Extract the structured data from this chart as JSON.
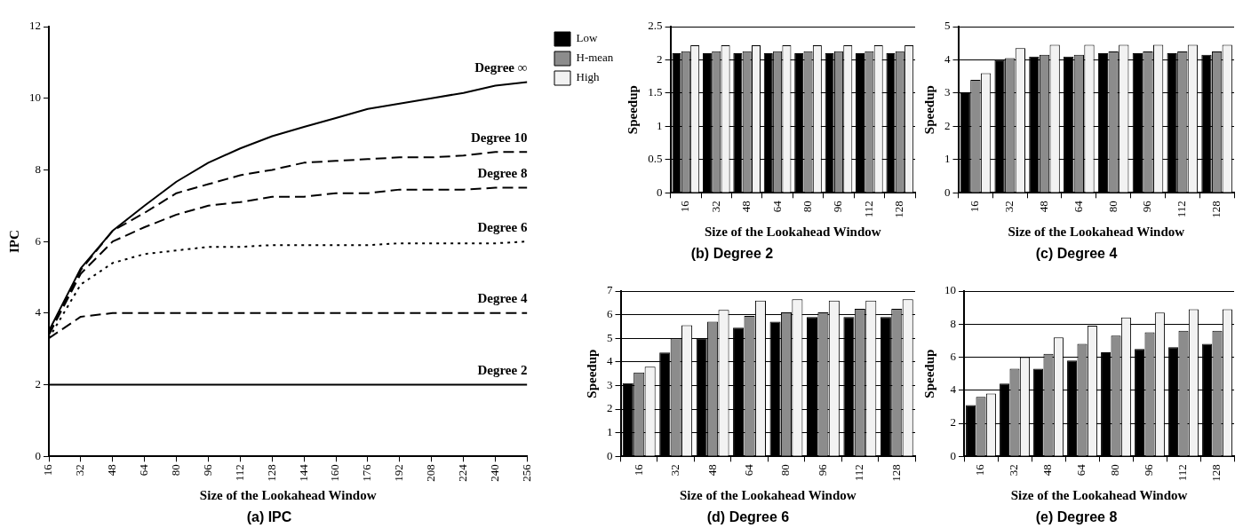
{
  "chart_data": [
    {
      "type": "line",
      "title": "(a) IPC",
      "xlabel": "Size of the Lookahead Window",
      "ylabel": "IPC",
      "x": [
        16,
        32,
        48,
        64,
        80,
        96,
        112,
        128,
        144,
        160,
        176,
        192,
        208,
        224,
        240,
        256
      ],
      "xlim": [
        16,
        256
      ],
      "xticks": [
        16,
        32,
        48,
        64,
        80,
        96,
        112,
        128,
        144,
        160,
        176,
        192,
        208,
        224,
        240,
        256
      ],
      "ylim": [
        0,
        12
      ],
      "yticks": [
        0,
        2,
        4,
        6,
        8,
        10,
        12
      ],
      "grid": false,
      "legend": false,
      "series": [
        {
          "name": "Degree ∞",
          "color": "#000000",
          "line_style": "solid",
          "values": [
            3.5,
            5.25,
            6.3,
            7.0,
            7.67,
            8.2,
            8.6,
            8.94,
            9.2,
            9.45,
            9.7,
            9.85,
            10.0,
            10.15,
            10.35,
            10.45
          ]
        },
        {
          "name": "Degree 10",
          "color": "#000000",
          "line_style": "dashed",
          "values": [
            3.4,
            5.2,
            6.3,
            6.8,
            7.35,
            7.6,
            7.85,
            8.0,
            8.2,
            8.25,
            8.3,
            8.35,
            8.35,
            8.4,
            8.5,
            8.5
          ]
        },
        {
          "name": "Degree 8",
          "color": "#000000",
          "line_style": "dashed",
          "values": [
            3.4,
            5.1,
            6.0,
            6.4,
            6.75,
            7.0,
            7.1,
            7.25,
            7.25,
            7.35,
            7.35,
            7.45,
            7.45,
            7.45,
            7.5,
            7.5
          ]
        },
        {
          "name": "Degree 6",
          "color": "#000000",
          "line_style": "dotted",
          "values": [
            3.3,
            4.8,
            5.4,
            5.65,
            5.75,
            5.85,
            5.85,
            5.9,
            5.9,
            5.9,
            5.9,
            5.95,
            5.95,
            5.95,
            5.95,
            6.0
          ]
        },
        {
          "name": "Degree 4",
          "color": "#000000",
          "line_style": "dashed",
          "values": [
            3.3,
            3.9,
            4.0,
            4.0,
            4.0,
            4.0,
            4.0,
            4.0,
            4.0,
            4.0,
            4.0,
            4.0,
            4.0,
            4.0,
            4.0,
            4.0
          ]
        },
        {
          "name": "Degree 2",
          "color": "#000000",
          "line_style": "solid",
          "values": [
            2,
            2,
            2,
            2,
            2,
            2,
            2,
            2,
            2,
            2,
            2,
            2,
            2,
            2,
            2,
            2
          ]
        }
      ]
    },
    {
      "type": "bar",
      "title": "(b) Degree 2",
      "xlabel": "Size of the Lookahead Window",
      "ylabel": "Speedup",
      "categories": [
        "16",
        "32",
        "48",
        "64",
        "80",
        "96",
        "112",
        "128"
      ],
      "ylim": [
        0,
        2.5
      ],
      "yticks": [
        0,
        0.5,
        1,
        1.5,
        2,
        2.5
      ],
      "grid": "y",
      "legend": "top left",
      "series": [
        {
          "name": "Low",
          "color": "#000000",
          "values": [
            2.1,
            2.1,
            2.1,
            2.1,
            2.1,
            2.1,
            2.1,
            2.1
          ]
        },
        {
          "name": "H-mean",
          "color": "#8c8c8c",
          "values": [
            2.13,
            2.13,
            2.13,
            2.13,
            2.13,
            2.13,
            2.13,
            2.13
          ]
        },
        {
          "name": "High",
          "color": "#f2f2f2",
          "values": [
            2.22,
            2.22,
            2.22,
            2.22,
            2.22,
            2.22,
            2.22,
            2.22
          ]
        }
      ]
    },
    {
      "type": "bar",
      "title": "(c) Degree 4",
      "xlabel": "Size of the Lookahead Window",
      "ylabel": "Speedup",
      "categories": [
        "16",
        "32",
        "48",
        "64",
        "80",
        "96",
        "112",
        "128"
      ],
      "ylim": [
        0,
        5
      ],
      "yticks": [
        0,
        1,
        2,
        3,
        4,
        5
      ],
      "grid": "y",
      "legend": false,
      "series": [
        {
          "color": "#000000",
          "values": [
            3.0,
            4.0,
            4.1,
            4.1,
            4.2,
            4.2,
            4.2,
            4.15
          ]
        },
        {
          "color": "#8c8c8c",
          "values": [
            3.4,
            4.05,
            4.15,
            4.15,
            4.25,
            4.25,
            4.25,
            4.25
          ]
        },
        {
          "color": "#f2f2f2",
          "values": [
            3.6,
            4.35,
            4.45,
            4.45,
            4.45,
            4.45,
            4.45,
            4.45
          ]
        }
      ]
    },
    {
      "type": "bar",
      "title": "(d) Degree 6",
      "xlabel": "Size of the Lookahead Window",
      "ylabel": "Speedup",
      "categories": [
        "16",
        "32",
        "48",
        "64",
        "80",
        "96",
        "112",
        "128"
      ],
      "ylim": [
        0,
        7
      ],
      "yticks": [
        0,
        1,
        2,
        3,
        4,
        5,
        6,
        7
      ],
      "grid": "y",
      "legend": false,
      "series": [
        {
          "color": "#000000",
          "values": [
            3.1,
            4.4,
            5.0,
            5.45,
            5.7,
            5.9,
            5.9,
            5.9
          ]
        },
        {
          "color": "#8c8c8c",
          "values": [
            3.55,
            5.0,
            5.7,
            5.95,
            6.1,
            6.1,
            6.25,
            6.25
          ]
        },
        {
          "color": "#f2f2f2",
          "values": [
            3.8,
            5.55,
            6.2,
            6.6,
            6.65,
            6.6,
            6.6,
            6.65
          ]
        }
      ]
    },
    {
      "type": "bar",
      "title": "(e) Degree 8",
      "xlabel": "Size of the Lookahead Window",
      "ylabel": "Speedup",
      "categories": [
        "16",
        "32",
        "48",
        "64",
        "80",
        "96",
        "112",
        "128"
      ],
      "ylim": [
        0,
        10
      ],
      "yticks": [
        0,
        2,
        4,
        6,
        8,
        10
      ],
      "grid": "y",
      "legend": false,
      "series": [
        {
          "color": "#000000",
          "values": [
            3.1,
            4.4,
            5.3,
            5.8,
            6.3,
            6.5,
            6.6,
            6.8
          ]
        },
        {
          "color": "#8c8c8c",
          "values": [
            3.6,
            5.3,
            6.2,
            6.8,
            7.3,
            7.5,
            7.6,
            7.6
          ]
        },
        {
          "color": "#f2f2f2",
          "values": [
            3.8,
            6.0,
            7.2,
            7.9,
            8.4,
            8.7,
            8.9,
            8.9
          ]
        }
      ]
    }
  ]
}
